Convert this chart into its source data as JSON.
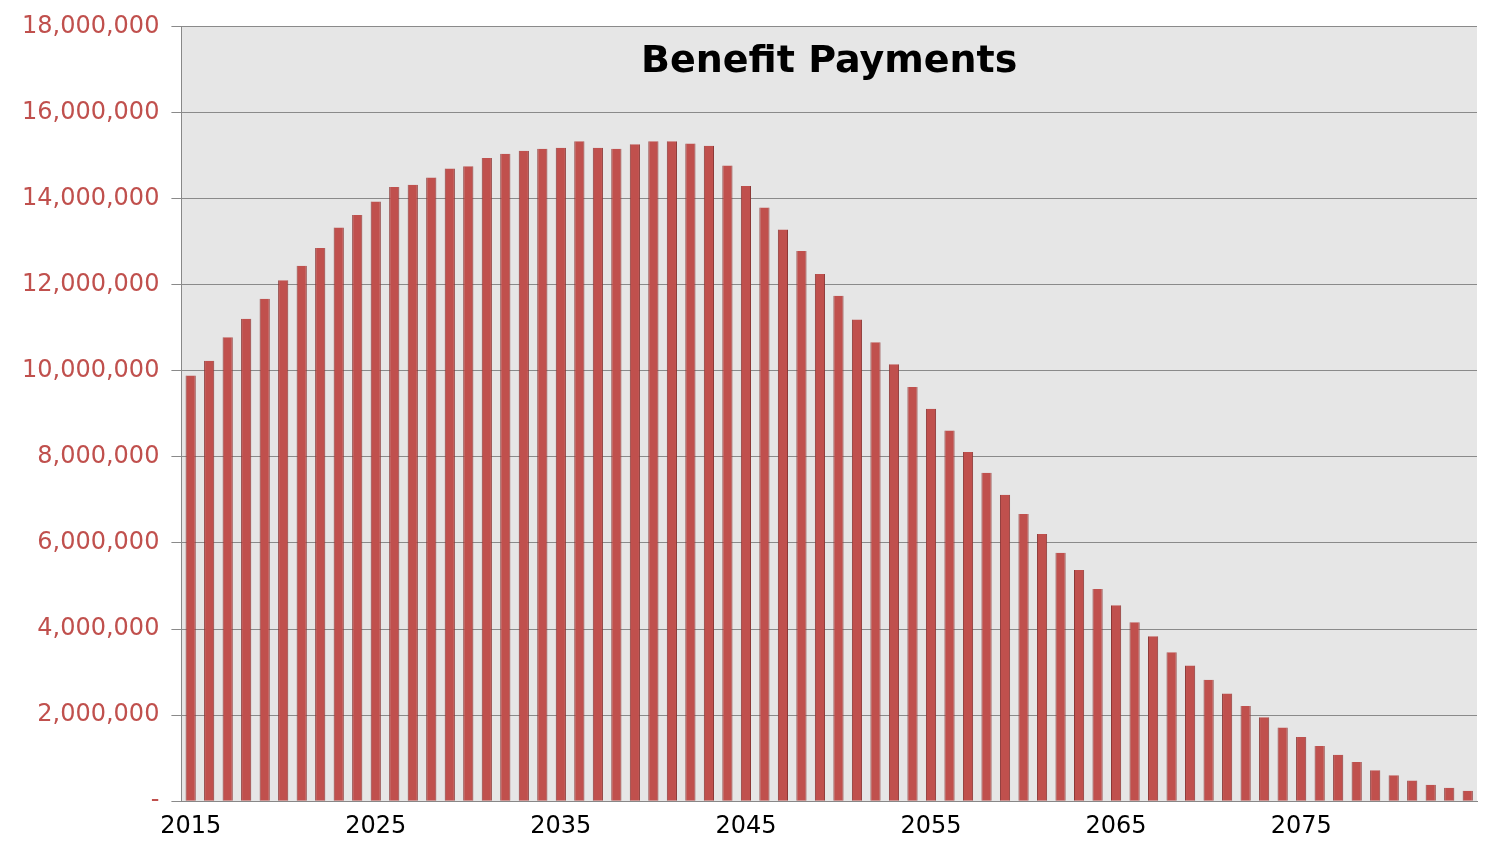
{
  "chart_data": {
    "type": "bar",
    "title": "Benefit Payments",
    "categories": [
      "2015",
      null,
      null,
      null,
      null,
      null,
      null,
      null,
      null,
      null,
      "2025",
      null,
      null,
      null,
      null,
      null,
      null,
      null,
      null,
      null,
      "2035",
      null,
      null,
      null,
      null,
      null,
      null,
      null,
      null,
      null,
      "2045",
      null,
      null,
      null,
      null,
      null,
      null,
      null,
      null,
      null,
      "2055",
      null,
      null,
      null,
      null,
      null,
      null,
      null,
      null,
      null,
      "2065",
      null,
      null,
      null,
      null,
      null,
      null,
      null,
      null,
      null,
      "2075",
      null,
      null,
      null,
      null,
      null,
      null,
      null,
      null,
      null
    ],
    "values": [
      9890000,
      10230000,
      10780000,
      11210000,
      11670000,
      12100000,
      12440000,
      12850000,
      13330000,
      13620000,
      13930000,
      14270000,
      14320000,
      14490000,
      14700000,
      14750000,
      14940000,
      15040000,
      15110000,
      15160000,
      15180000,
      15330000,
      15180000,
      15160000,
      15260000,
      15330000,
      15330000,
      15280000,
      15230000,
      14770000,
      14290000,
      13790000,
      13280000,
      12780000,
      12250000,
      11740000,
      11190000,
      10660000,
      10150000,
      9620000,
      9120000,
      8610000,
      8110000,
      7630000,
      7120000,
      6670000,
      6210000,
      5770000,
      5370000,
      4930000,
      4550000,
      4160000,
      3830000,
      3460000,
      3150000,
      2820000,
      2500000,
      2210000,
      1950000,
      1710000,
      1490000,
      1280000,
      1080000,
      910000,
      720000,
      600000,
      480000,
      380000,
      310000,
      240000
    ],
    "color": "#c0504d",
    "ylim": [
      0,
      18000000
    ],
    "yticks": [
      {
        "value": 0,
        "label": "-"
      },
      {
        "value": 2000000,
        "label": "2,000,000"
      },
      {
        "value": 4000000,
        "label": "4,000,000"
      },
      {
        "value": 6000000,
        "label": "6,000,000"
      },
      {
        "value": 8000000,
        "label": "8,000,000"
      },
      {
        "value": 10000000,
        "label": "10,000,000"
      },
      {
        "value": 12000000,
        "label": "12,000,000"
      },
      {
        "value": 14000000,
        "label": "14,000,000"
      },
      {
        "value": 16000000,
        "label": "16,000,000"
      },
      {
        "value": 18000000,
        "label": "18,000,000"
      }
    ],
    "grid": "y",
    "legend": false
  }
}
